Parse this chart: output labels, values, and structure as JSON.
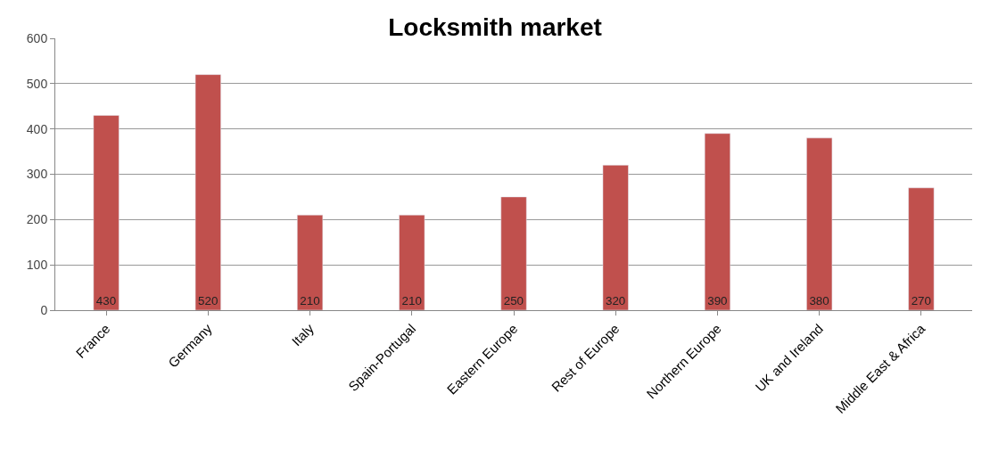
{
  "chart_data": {
    "type": "bar",
    "title": "Locksmith market",
    "categories": [
      "France",
      "Germany",
      "Italy",
      "Spain-Portugal",
      "Eastern Europe",
      "Rest of Europe",
      "Northern Europe",
      "UK and Ireland",
      "Middle East & Africa"
    ],
    "values": [
      430,
      520,
      210,
      210,
      250,
      320,
      390,
      380,
      270
    ],
    "color": "#c0504d",
    "ylim": [
      0,
      600
    ],
    "yticks": [
      0,
      100,
      200,
      300,
      400,
      500,
      600
    ],
    "grid": "y",
    "data_labels": true,
    "legend": false
  }
}
